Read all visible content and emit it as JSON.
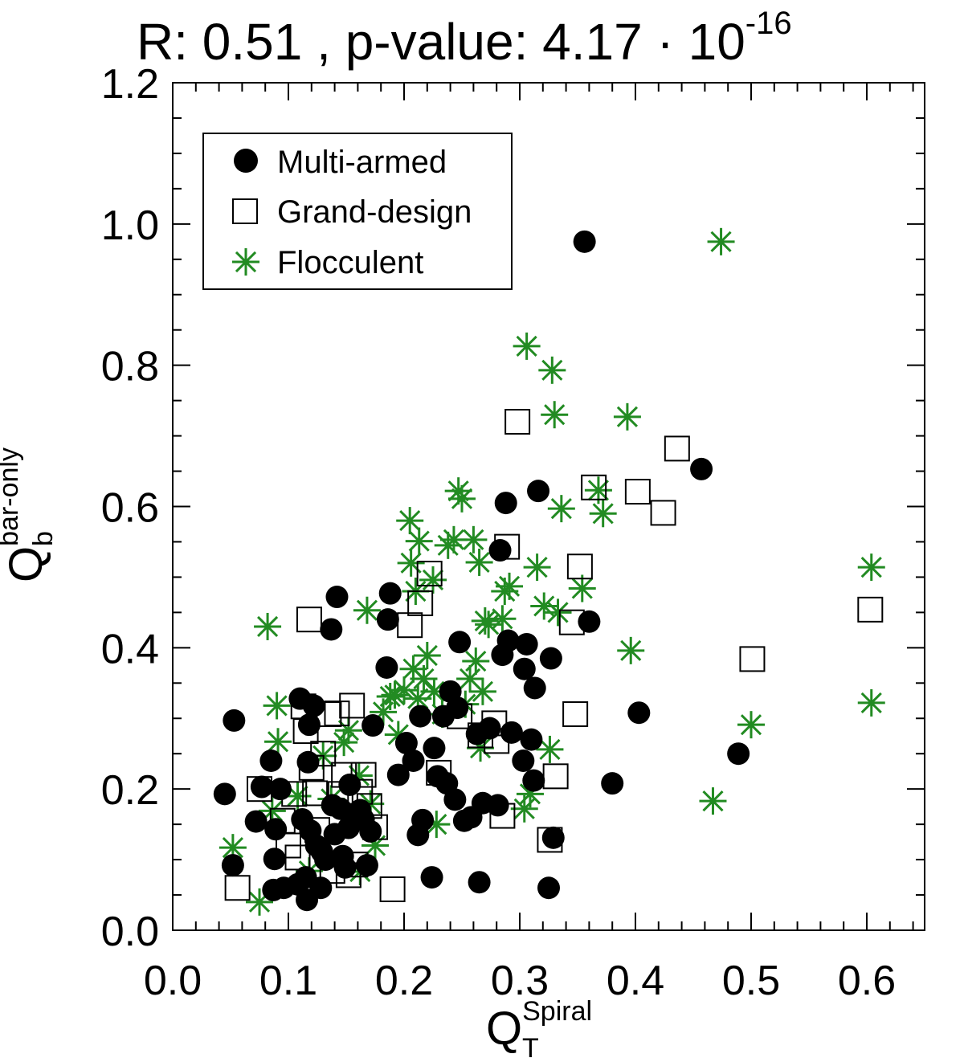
{
  "chart_data": {
    "type": "scatter",
    "title": {
      "prefix": "R: 0.51 , p-value:  4.17 · 10",
      "exponent": "-16"
    },
    "xlabel": {
      "main": "Q",
      "sub": "T",
      "sup": "Spiral"
    },
    "ylabel": {
      "main": "Q",
      "sub": "b",
      "sup": "bar-only"
    },
    "xlim": [
      0.0,
      0.65
    ],
    "ylim": [
      0.0,
      1.2
    ],
    "xticks": [
      "0.0",
      "0.1",
      "0.2",
      "0.3",
      "0.4",
      "0.5",
      "0.6"
    ],
    "yticks": [
      "0.0",
      "0.2",
      "0.4",
      "0.6",
      "0.8",
      "1.0",
      "1.2"
    ],
    "legend_position": "top-left",
    "colors": {
      "multi": "#000000",
      "grand": "#000000",
      "flocculent": "#228b22"
    },
    "series": [
      {
        "name": "Multi-armed",
        "marker": "filled-circle",
        "points": [
          [
            0.045,
            0.193
          ],
          [
            0.052,
            0.092
          ],
          [
            0.053,
            0.297
          ],
          [
            0.072,
            0.154
          ],
          [
            0.077,
            0.203
          ],
          [
            0.085,
            0.24
          ],
          [
            0.087,
            0.057
          ],
          [
            0.088,
            0.101
          ],
          [
            0.089,
            0.143
          ],
          [
            0.093,
            0.2
          ],
          [
            0.096,
            0.06
          ],
          [
            0.108,
            0.065
          ],
          [
            0.11,
            0.328
          ],
          [
            0.112,
            0.157
          ],
          [
            0.115,
            0.075
          ],
          [
            0.116,
            0.043
          ],
          [
            0.117,
            0.238
          ],
          [
            0.118,
            0.291
          ],
          [
            0.119,
            0.141
          ],
          [
            0.122,
            0.318
          ],
          [
            0.124,
            0.12
          ],
          [
            0.128,
            0.06
          ],
          [
            0.129,
            0.111
          ],
          [
            0.132,
            0.1
          ],
          [
            0.137,
            0.426
          ],
          [
            0.138,
            0.177
          ],
          [
            0.14,
            0.136
          ],
          [
            0.142,
            0.472
          ],
          [
            0.145,
            0.172
          ],
          [
            0.147,
            0.105
          ],
          [
            0.149,
            0.089
          ],
          [
            0.152,
            0.145
          ],
          [
            0.153,
            0.206
          ],
          [
            0.158,
            0.163
          ],
          [
            0.162,
            0.17
          ],
          [
            0.165,
            0.157
          ],
          [
            0.168,
            0.092
          ],
          [
            0.171,
            0.14
          ],
          [
            0.173,
            0.29
          ],
          [
            0.185,
            0.372
          ],
          [
            0.186,
            0.44
          ],
          [
            0.188,
            0.477
          ],
          [
            0.195,
            0.22
          ],
          [
            0.202,
            0.265
          ],
          [
            0.208,
            0.24
          ],
          [
            0.212,
            0.135
          ],
          [
            0.214,
            0.303
          ],
          [
            0.216,
            0.156
          ],
          [
            0.224,
            0.075
          ],
          [
            0.226,
            0.258
          ],
          [
            0.229,
            0.218
          ],
          [
            0.234,
            0.303
          ],
          [
            0.237,
            0.208
          ],
          [
            0.24,
            0.338
          ],
          [
            0.244,
            0.185
          ],
          [
            0.246,
            0.315
          ],
          [
            0.248,
            0.408
          ],
          [
            0.252,
            0.155
          ],
          [
            0.258,
            0.16
          ],
          [
            0.263,
            0.278
          ],
          [
            0.265,
            0.068
          ],
          [
            0.268,
            0.18
          ],
          [
            0.274,
            0.286
          ],
          [
            0.281,
            0.177
          ],
          [
            0.283,
            0.538
          ],
          [
            0.285,
            0.39
          ],
          [
            0.288,
            0.605
          ],
          [
            0.29,
            0.41
          ],
          [
            0.293,
            0.28
          ],
          [
            0.303,
            0.24
          ],
          [
            0.304,
            0.37
          ],
          [
            0.306,
            0.405
          ],
          [
            0.31,
            0.27
          ],
          [
            0.312,
            0.212
          ],
          [
            0.313,
            0.343
          ],
          [
            0.316,
            0.622
          ],
          [
            0.325,
            0.06
          ],
          [
            0.327,
            0.385
          ],
          [
            0.329,
            0.131
          ],
          [
            0.356,
            0.975
          ],
          [
            0.36,
            0.437
          ],
          [
            0.38,
            0.208
          ],
          [
            0.403,
            0.308
          ],
          [
            0.457,
            0.653
          ],
          [
            0.489,
            0.25
          ]
        ]
      },
      {
        "name": "Grand-design",
        "marker": "open-square",
        "points": [
          [
            0.056,
            0.06
          ],
          [
            0.075,
            0.2
          ],
          [
            0.095,
            0.155
          ],
          [
            0.1,
            0.12
          ],
          [
            0.105,
            0.193
          ],
          [
            0.108,
            0.103
          ],
          [
            0.113,
            0.317
          ],
          [
            0.115,
            0.282
          ],
          [
            0.118,
            0.44
          ],
          [
            0.12,
            0.23
          ],
          [
            0.123,
            0.194
          ],
          [
            0.125,
            0.142
          ],
          [
            0.13,
            0.25
          ],
          [
            0.135,
            0.306
          ],
          [
            0.138,
            0.084
          ],
          [
            0.142,
            0.307
          ],
          [
            0.145,
            0.193
          ],
          [
            0.148,
            0.22
          ],
          [
            0.152,
            0.078
          ],
          [
            0.155,
            0.318
          ],
          [
            0.158,
            0.093
          ],
          [
            0.162,
            0.196
          ],
          [
            0.165,
            0.22
          ],
          [
            0.17,
            0.176
          ],
          [
            0.175,
            0.146
          ],
          [
            0.19,
            0.058
          ],
          [
            0.205,
            0.432
          ],
          [
            0.214,
            0.463
          ],
          [
            0.222,
            0.505
          ],
          [
            0.23,
            0.223
          ],
          [
            0.248,
            0.303
          ],
          [
            0.266,
            0.276
          ],
          [
            0.278,
            0.293
          ],
          [
            0.28,
            0.268
          ],
          [
            0.285,
            0.162
          ],
          [
            0.289,
            0.543
          ],
          [
            0.298,
            0.72
          ],
          [
            0.326,
            0.128
          ],
          [
            0.331,
            0.218
          ],
          [
            0.345,
            0.436
          ],
          [
            0.348,
            0.306
          ],
          [
            0.352,
            0.515
          ],
          [
            0.364,
            0.627
          ],
          [
            0.402,
            0.621
          ],
          [
            0.424,
            0.591
          ],
          [
            0.436,
            0.682
          ],
          [
            0.501,
            0.384
          ],
          [
            0.603,
            0.454
          ]
        ]
      },
      {
        "name": "Flocculent",
        "marker": "star",
        "points": [
          [
            0.052,
            0.117
          ],
          [
            0.075,
            0.04
          ],
          [
            0.082,
            0.43
          ],
          [
            0.086,
            0.169
          ],
          [
            0.09,
            0.318
          ],
          [
            0.091,
            0.267
          ],
          [
            0.108,
            0.19
          ],
          [
            0.118,
            0.084
          ],
          [
            0.13,
            0.247
          ],
          [
            0.137,
            0.186
          ],
          [
            0.148,
            0.266
          ],
          [
            0.152,
            0.283
          ],
          [
            0.161,
            0.219
          ],
          [
            0.162,
            0.083
          ],
          [
            0.168,
            0.453
          ],
          [
            0.171,
            0.179
          ],
          [
            0.175,
            0.12
          ],
          [
            0.182,
            0.309
          ],
          [
            0.188,
            0.331
          ],
          [
            0.192,
            0.333
          ],
          [
            0.195,
            0.277
          ],
          [
            0.2,
            0.34
          ],
          [
            0.205,
            0.58
          ],
          [
            0.206,
            0.52
          ],
          [
            0.208,
            0.37
          ],
          [
            0.21,
            0.48
          ],
          [
            0.212,
            0.328
          ],
          [
            0.213,
            0.551
          ],
          [
            0.217,
            0.356
          ],
          [
            0.22,
            0.389
          ],
          [
            0.225,
            0.496
          ],
          [
            0.226,
            0.338
          ],
          [
            0.228,
            0.15
          ],
          [
            0.233,
            0.306
          ],
          [
            0.238,
            0.545
          ],
          [
            0.243,
            0.553
          ],
          [
            0.247,
            0.622
          ],
          [
            0.25,
            0.611
          ],
          [
            0.253,
            0.32
          ],
          [
            0.257,
            0.356
          ],
          [
            0.26,
            0.553
          ],
          [
            0.262,
            0.381
          ],
          [
            0.265,
            0.521
          ],
          [
            0.266,
            0.258
          ],
          [
            0.268,
            0.338
          ],
          [
            0.27,
            0.438
          ],
          [
            0.273,
            0.433
          ],
          [
            0.285,
            0.441
          ],
          [
            0.287,
            0.48
          ],
          [
            0.291,
            0.487
          ],
          [
            0.304,
            0.172
          ],
          [
            0.306,
            0.827
          ],
          [
            0.309,
            0.193
          ],
          [
            0.315,
            0.514
          ],
          [
            0.321,
            0.459
          ],
          [
            0.326,
            0.256
          ],
          [
            0.328,
            0.793
          ],
          [
            0.33,
            0.73
          ],
          [
            0.333,
            0.45
          ],
          [
            0.336,
            0.597
          ],
          [
            0.354,
            0.484
          ],
          [
            0.368,
            0.623
          ],
          [
            0.372,
            0.59
          ],
          [
            0.393,
            0.727
          ],
          [
            0.396,
            0.396
          ],
          [
            0.467,
            0.183
          ],
          [
            0.474,
            0.975
          ],
          [
            0.5,
            0.291
          ],
          [
            0.604,
            0.514
          ],
          [
            0.604,
            0.322
          ]
        ]
      }
    ]
  }
}
